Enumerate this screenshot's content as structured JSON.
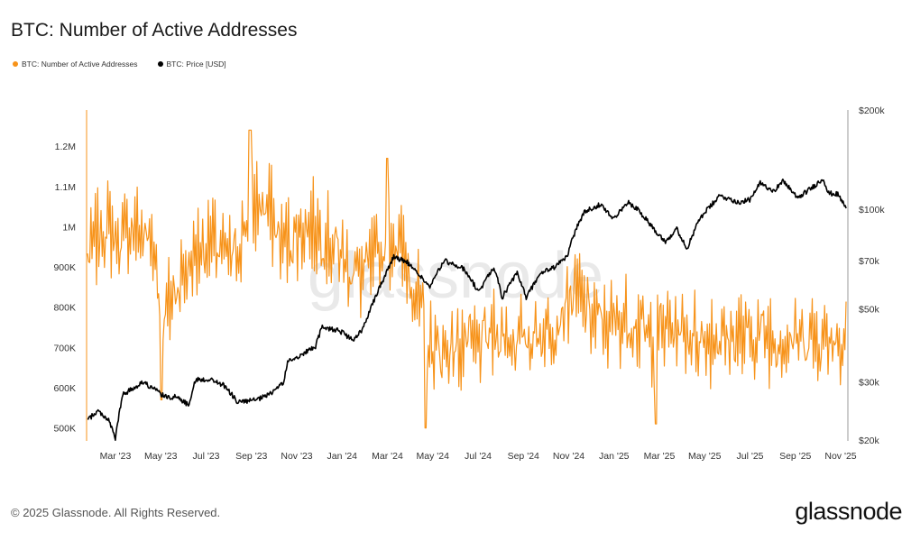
{
  "title": "BTC: Number of Active Addresses",
  "legend": {
    "items": [
      {
        "label": "BTC: Number of Active Addresses",
        "color": "#f7931a"
      },
      {
        "label": "BTC: Price [USD]",
        "color": "#000000"
      }
    ]
  },
  "footer": {
    "copyright": "© 2025 Glassnode. All Rights Reserved.",
    "logo": "glassnode",
    "watermark": "glassnode"
  },
  "chart_data": {
    "type": "line",
    "x_ticks": [
      "Mar '23",
      "May '23",
      "Jul '23",
      "Sep '23",
      "Nov '23",
      "Jan '24",
      "Mar '24",
      "May '24",
      "Jul '24",
      "Sep '24",
      "Nov '24",
      "Jan '25",
      "Mar '25",
      "May '25",
      "Jul '25",
      "Sep '25",
      "Nov '25"
    ],
    "x_range": [
      "2023-02-01",
      "2025-11-05"
    ],
    "y_left": {
      "ticks": [
        "500K",
        "600K",
        "700K",
        "800K",
        "900K",
        "1M",
        "1.1M",
        "1.2M"
      ],
      "tick_values": [
        500000,
        600000,
        700000,
        800000,
        900000,
        1000000,
        1100000,
        1200000
      ],
      "range": [
        470000,
        1290000
      ]
    },
    "y_right": {
      "scale": "log",
      "ticks": [
        "$20k",
        "$30k",
        "$50k",
        "$70k",
        "$100k",
        "$200k"
      ],
      "tick_values": [
        20000,
        30000,
        50000,
        70000,
        100000,
        200000
      ],
      "range": [
        20000,
        200000
      ]
    },
    "grid": false,
    "legend_position": "top-left",
    "series": [
      {
        "name": "BTC: Number of Active Addresses",
        "axis": "left",
        "color": "#f7931a",
        "points": [
          [
            "2023-02-01",
            920000
          ],
          [
            "2023-02-15",
            980000
          ],
          [
            "2023-03-01",
            1000000
          ],
          [
            "2023-03-15",
            960000
          ],
          [
            "2023-04-01",
            1000000
          ],
          [
            "2023-04-15",
            980000
          ],
          [
            "2023-05-01",
            960000
          ],
          [
            "2023-05-08",
            800000
          ],
          [
            "2023-05-15",
            780000
          ],
          [
            "2023-06-01",
            860000
          ],
          [
            "2023-06-15",
            900000
          ],
          [
            "2023-07-01",
            950000
          ],
          [
            "2023-07-15",
            960000
          ],
          [
            "2023-08-01",
            930000
          ],
          [
            "2023-08-15",
            920000
          ],
          [
            "2023-09-01",
            1020000
          ],
          [
            "2023-09-15",
            1060000
          ],
          [
            "2023-10-01",
            1040000
          ],
          [
            "2023-10-15",
            960000
          ],
          [
            "2023-11-01",
            970000
          ],
          [
            "2023-11-15",
            1000000
          ],
          [
            "2023-12-01",
            1000000
          ],
          [
            "2023-12-15",
            970000
          ],
          [
            "2024-01-01",
            940000
          ],
          [
            "2024-01-15",
            900000
          ],
          [
            "2024-02-01",
            880000
          ],
          [
            "2024-02-15",
            910000
          ],
          [
            "2024-03-01",
            940000
          ],
          [
            "2024-03-15",
            980000
          ],
          [
            "2024-04-01",
            900000
          ],
          [
            "2024-04-15",
            820000
          ],
          [
            "2024-05-01",
            700000
          ],
          [
            "2024-05-15",
            690000
          ],
          [
            "2024-06-01",
            700000
          ],
          [
            "2024-06-15",
            710000
          ],
          [
            "2024-07-01",
            700000
          ],
          [
            "2024-07-15",
            720000
          ],
          [
            "2024-08-01",
            740000
          ],
          [
            "2024-08-15",
            720000
          ],
          [
            "2024-09-01",
            720000
          ],
          [
            "2024-09-15",
            730000
          ],
          [
            "2024-10-01",
            740000
          ],
          [
            "2024-10-15",
            760000
          ],
          [
            "2024-11-01",
            820000
          ],
          [
            "2024-11-15",
            830000
          ],
          [
            "2024-12-01",
            780000
          ],
          [
            "2024-12-15",
            760000
          ],
          [
            "2025-01-01",
            760000
          ],
          [
            "2025-01-15",
            770000
          ],
          [
            "2025-02-01",
            760000
          ],
          [
            "2025-02-15",
            720000
          ],
          [
            "2025-03-01",
            740000
          ],
          [
            "2025-03-15",
            750000
          ],
          [
            "2025-04-01",
            740000
          ],
          [
            "2025-04-15",
            730000
          ],
          [
            "2025-05-01",
            720000
          ],
          [
            "2025-05-15",
            730000
          ],
          [
            "2025-06-01",
            720000
          ],
          [
            "2025-06-15",
            730000
          ],
          [
            "2025-07-01",
            720000
          ],
          [
            "2025-07-15",
            740000
          ],
          [
            "2025-08-01",
            720000
          ],
          [
            "2025-08-15",
            720000
          ],
          [
            "2025-09-01",
            720000
          ],
          [
            "2025-09-15",
            730000
          ],
          [
            "2025-10-01",
            720000
          ],
          [
            "2025-10-15",
            730000
          ],
          [
            "2025-11-01",
            720000
          ],
          [
            "2025-11-05",
            760000
          ]
        ],
        "notable_values": [
          [
            "2023-09-05",
            1240000
          ],
          [
            "2024-03-05",
            1170000
          ],
          [
            "2023-05-10",
            570000
          ],
          [
            "2024-04-25",
            500000
          ],
          [
            "2025-02-25",
            510000
          ]
        ]
      },
      {
        "name": "BTC: Price [USD]",
        "axis": "right",
        "color": "#000000",
        "points": [
          [
            "2023-02-01",
            23000
          ],
          [
            "2023-02-15",
            24500
          ],
          [
            "2023-03-01",
            23000
          ],
          [
            "2023-03-10",
            20200
          ],
          [
            "2023-03-20",
            27500
          ],
          [
            "2023-04-01",
            28500
          ],
          [
            "2023-04-15",
            30000
          ],
          [
            "2023-05-01",
            28500
          ],
          [
            "2023-05-15",
            27000
          ],
          [
            "2023-06-01",
            27000
          ],
          [
            "2023-06-15",
            25500
          ],
          [
            "2023-06-25",
            30500
          ],
          [
            "2023-07-15",
            30500
          ],
          [
            "2023-08-01",
            29300
          ],
          [
            "2023-08-20",
            26000
          ],
          [
            "2023-09-15",
            26500
          ],
          [
            "2023-10-01",
            27500
          ],
          [
            "2023-10-20",
            30000
          ],
          [
            "2023-10-25",
            34500
          ],
          [
            "2023-11-15",
            36500
          ],
          [
            "2023-12-01",
            38500
          ],
          [
            "2023-12-10",
            44000
          ],
          [
            "2024-01-01",
            43000
          ],
          [
            "2024-01-20",
            40000
          ],
          [
            "2024-02-01",
            43000
          ],
          [
            "2024-02-15",
            52000
          ],
          [
            "2024-03-01",
            62000
          ],
          [
            "2024-03-14",
            72000
          ],
          [
            "2024-04-01",
            69000
          ],
          [
            "2024-04-15",
            64000
          ],
          [
            "2024-05-01",
            58000
          ],
          [
            "2024-05-20",
            70000
          ],
          [
            "2024-06-01",
            68000
          ],
          [
            "2024-06-15",
            66000
          ],
          [
            "2024-07-05",
            56000
          ],
          [
            "2024-07-25",
            67000
          ],
          [
            "2024-08-05",
            54000
          ],
          [
            "2024-08-25",
            64000
          ],
          [
            "2024-09-06",
            54000
          ],
          [
            "2024-09-25",
            64000
          ],
          [
            "2024-10-15",
            67000
          ],
          [
            "2024-10-30",
            72000
          ],
          [
            "2024-11-12",
            88000
          ],
          [
            "2024-11-22",
            98000
          ],
          [
            "2024-12-15",
            104000
          ],
          [
            "2024-12-30",
            93000
          ],
          [
            "2025-01-20",
            105000
          ],
          [
            "2025-02-01",
            100000
          ],
          [
            "2025-02-25",
            86000
          ],
          [
            "2025-03-10",
            80000
          ],
          [
            "2025-03-25",
            87000
          ],
          [
            "2025-04-08",
            76000
          ],
          [
            "2025-04-25",
            94000
          ],
          [
            "2025-05-10",
            103000
          ],
          [
            "2025-05-22",
            110000
          ],
          [
            "2025-06-15",
            105000
          ],
          [
            "2025-07-01",
            107000
          ],
          [
            "2025-07-14",
            120000
          ],
          [
            "2025-08-01",
            114000
          ],
          [
            "2025-08-14",
            122000
          ],
          [
            "2025-09-01",
            108000
          ],
          [
            "2025-09-20",
            116000
          ],
          [
            "2025-10-06",
            124000
          ],
          [
            "2025-10-12",
            112000
          ],
          [
            "2025-10-25",
            111000
          ],
          [
            "2025-11-05",
            101000
          ]
        ]
      }
    ]
  }
}
